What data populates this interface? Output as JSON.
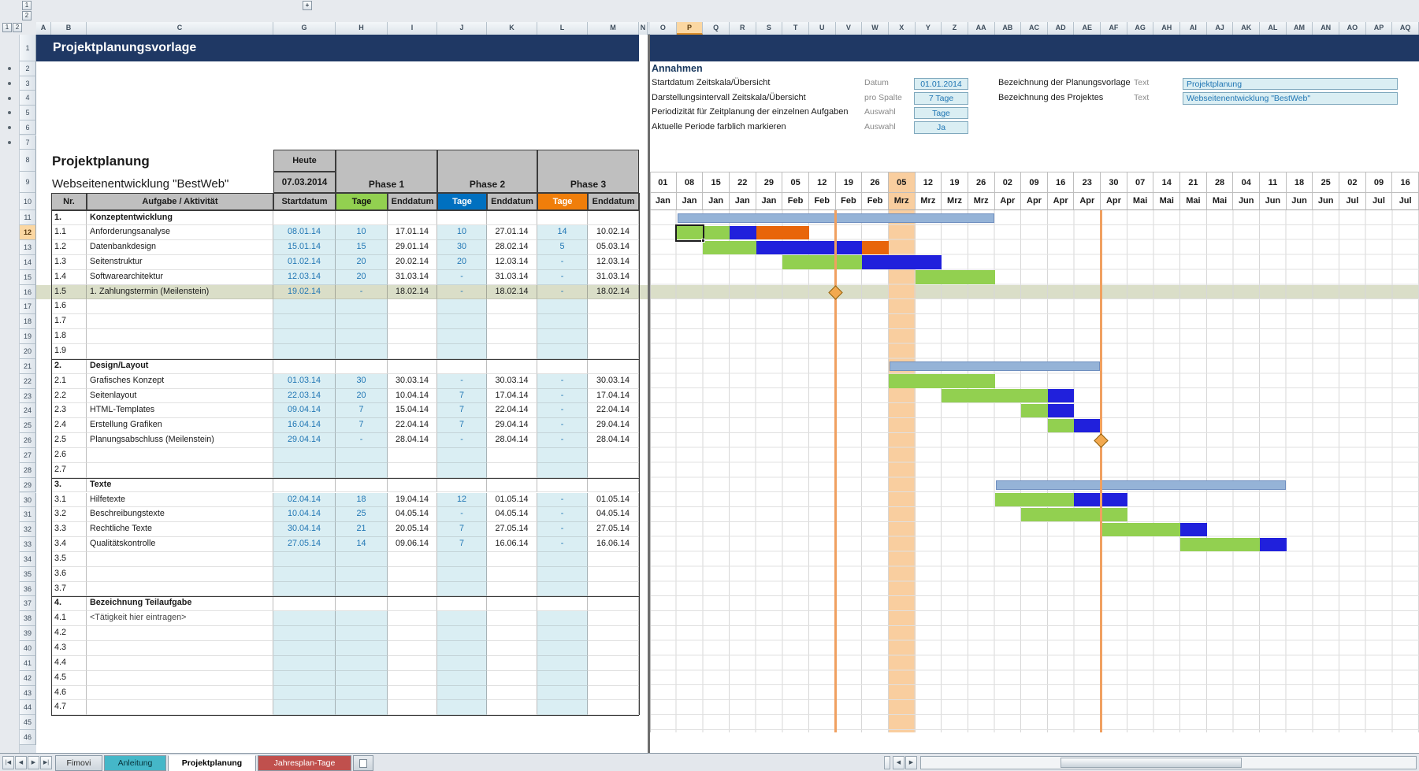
{
  "title_row": {
    "text": "Projektplanungsvorlage"
  },
  "chrome": {
    "outline_levels": [
      "1",
      "2"
    ],
    "expand_button": "+",
    "column_letters": [
      "A",
      "B",
      "C",
      "G",
      "H",
      "I",
      "J",
      "K",
      "L",
      "M",
      "N"
    ],
    "gantt_column_letters": [
      "O",
      "P",
      "Q",
      "R",
      "S",
      "T",
      "U",
      "V",
      "W",
      "X",
      "Y",
      "Z",
      "AA",
      "AB",
      "AC",
      "AD",
      "AE",
      "AF",
      "AG",
      "AH",
      "AI",
      "AJ",
      "AK",
      "AL",
      "AM",
      "AN",
      "AO",
      "AP",
      "AQ"
    ],
    "selected_column": "P",
    "selected_row": 12,
    "row_count": 46,
    "sheet_tabs": [
      {
        "label": "Fimovi",
        "active": false,
        "color": null,
        "text_color": "#2b2b2b"
      },
      {
        "label": "Anleitung",
        "active": false,
        "color": "#45B7C8",
        "text_color": "#07333B"
      },
      {
        "label": "Projektplanung",
        "active": true,
        "color": null,
        "text_color": "#000000"
      },
      {
        "label": "Jahresplan-Tage",
        "active": false,
        "color": "#C0504D",
        "text_color": "#FFFFFF"
      }
    ]
  },
  "assumptions": {
    "heading": "Annahmen",
    "left": [
      {
        "label": "Startdatum Zeitskala/Übersicht",
        "kind": "Datum",
        "value": "01.01.2014"
      },
      {
        "label": "Darstellungsintervall Zeitskala/Übersicht",
        "kind": "pro Spalte",
        "value": "7 Tage"
      },
      {
        "label": "Periodizität für Zeitplanung der einzelnen Aufgaben",
        "kind": "Auswahl",
        "value": "Tage"
      },
      {
        "label": "Aktuelle Periode farblich markieren",
        "kind": "Auswahl",
        "value": "Ja"
      }
    ],
    "right": [
      {
        "label": "Bezeichnung der Planungsvorlage",
        "kind": "Text",
        "value": "Projektplanung"
      },
      {
        "label": "Bezeichnung des Projektes",
        "kind": "Text",
        "value": "Webseitenentwicklung \"BestWeb\""
      }
    ]
  },
  "plan": {
    "title": "Projektplanung",
    "subtitle": "Webseitenentwicklung \"BestWeb\"",
    "today_label": "Heute",
    "today_value": "07.03.2014",
    "phase_labels": [
      "Phase 1",
      "Phase 2",
      "Phase 3"
    ],
    "header": {
      "nr": "Nr.",
      "task": "Aufgabe / Aktivität",
      "start": "Startdatum",
      "days": "Tage",
      "end": "Enddatum"
    }
  },
  "rows": [
    {
      "r": 11,
      "t": "sec",
      "nr": "1.",
      "name": "Konzeptentwicklung",
      "bar": [
        1,
        12
      ]
    },
    {
      "r": 12,
      "t": "task",
      "nr": "1.1",
      "name": "Anforderungsanalyse",
      "s": "08.01.14",
      "d1": "10",
      "e1": "17.01.14",
      "d2": "10",
      "e2": "27.01.14",
      "d3": "14",
      "e3": "10.02.14",
      "seg": [
        [
          1,
          2,
          1
        ],
        [
          3,
          3,
          2
        ],
        [
          4,
          5,
          3
        ]
      ],
      "sel": 1
    },
    {
      "r": 13,
      "t": "task",
      "nr": "1.2",
      "name": "Datenbankdesign",
      "s": "15.01.14",
      "d1": "15",
      "e1": "29.01.14",
      "d2": "30",
      "e2": "28.02.14",
      "d3": "5",
      "e3": "05.03.14",
      "seg": [
        [
          2,
          3,
          1
        ],
        [
          4,
          7,
          2
        ],
        [
          8,
          8,
          3
        ]
      ]
    },
    {
      "r": 14,
      "t": "task",
      "nr": "1.3",
      "name": "Seitenstruktur",
      "s": "01.02.14",
      "d1": "20",
      "e1": "20.02.14",
      "d2": "20",
      "e2": "12.03.14",
      "d3": "-",
      "e3": "12.03.14",
      "seg": [
        [
          5,
          7,
          1
        ],
        [
          8,
          10,
          2
        ]
      ]
    },
    {
      "r": 15,
      "t": "task",
      "nr": "1.4",
      "name": "Softwarearchitektur",
      "s": "12.03.14",
      "d1": "20",
      "e1": "31.03.14",
      "d2": "-",
      "e2": "31.03.14",
      "d3": "-",
      "e3": "31.03.14",
      "seg": [
        [
          10,
          12,
          1
        ]
      ]
    },
    {
      "r": 16,
      "t": "task",
      "nr": "1.5",
      "name": "1. Zahlungstermin (Meilenstein)",
      "s": "19.02.14",
      "d1": "-",
      "e1": "18.02.14",
      "d2": "-",
      "e2": "18.02.14",
      "d3": "-",
      "e3": "18.02.14",
      "hl": true
    },
    {
      "r": 17,
      "t": "empty",
      "nr": "1.6"
    },
    {
      "r": 18,
      "t": "empty",
      "nr": "1.7"
    },
    {
      "r": 19,
      "t": "empty",
      "nr": "1.8"
    },
    {
      "r": 20,
      "t": "empty",
      "nr": "1.9"
    },
    {
      "r": 21,
      "t": "sec",
      "nr": "2.",
      "name": "Design/Layout",
      "bar": [
        9,
        16
      ]
    },
    {
      "r": 22,
      "t": "task",
      "nr": "2.1",
      "name": "Grafisches Konzept",
      "s": "01.03.14",
      "d1": "30",
      "e1": "30.03.14",
      "d2": "-",
      "e2": "30.03.14",
      "d3": "-",
      "e3": "30.03.14",
      "seg": [
        [
          9,
          12,
          1
        ]
      ]
    },
    {
      "r": 23,
      "t": "task",
      "nr": "2.2",
      "name": "Seitenlayout",
      "s": "22.03.14",
      "d1": "20",
      "e1": "10.04.14",
      "d2": "7",
      "e2": "17.04.14",
      "d3": "-",
      "e3": "17.04.14",
      "seg": [
        [
          11,
          14,
          1
        ],
        [
          15,
          15,
          2
        ]
      ]
    },
    {
      "r": 24,
      "t": "task",
      "nr": "2.3",
      "name": "HTML-Templates",
      "s": "09.04.14",
      "d1": "7",
      "e1": "15.04.14",
      "d2": "7",
      "e2": "22.04.14",
      "d3": "-",
      "e3": "22.04.14",
      "seg": [
        [
          14,
          14,
          1
        ],
        [
          15,
          15,
          2
        ]
      ]
    },
    {
      "r": 25,
      "t": "task",
      "nr": "2.4",
      "name": "Erstellung Grafiken",
      "s": "16.04.14",
      "d1": "7",
      "e1": "22.04.14",
      "d2": "7",
      "e2": "29.04.14",
      "d3": "-",
      "e3": "29.04.14",
      "seg": [
        [
          15,
          15,
          1
        ],
        [
          16,
          16,
          2
        ]
      ]
    },
    {
      "r": 26,
      "t": "task",
      "nr": "2.5",
      "name": "Planungsabschluss (Meilenstein)",
      "s": "29.04.14",
      "d1": "-",
      "e1": "28.04.14",
      "d2": "-",
      "e2": "28.04.14",
      "d3": "-",
      "e3": "28.04.14"
    },
    {
      "r": 27,
      "t": "empty",
      "nr": "2.6"
    },
    {
      "r": 28,
      "t": "empty",
      "nr": "2.7"
    },
    {
      "r": 29,
      "t": "sec",
      "nr": "3.",
      "name": "Texte",
      "bar": [
        13,
        23
      ]
    },
    {
      "r": 30,
      "t": "task",
      "nr": "3.1",
      "name": "Hilfetexte",
      "s": "02.04.14",
      "d1": "18",
      "e1": "19.04.14",
      "d2": "12",
      "e2": "01.05.14",
      "d3": "-",
      "e3": "01.05.14",
      "seg": [
        [
          13,
          15,
          1
        ],
        [
          16,
          17,
          2
        ]
      ]
    },
    {
      "r": 31,
      "t": "task",
      "nr": "3.2",
      "name": "Beschreibungstexte",
      "s": "10.04.14",
      "d1": "25",
      "e1": "04.05.14",
      "d2": "-",
      "e2": "04.05.14",
      "d3": "-",
      "e3": "04.05.14",
      "seg": [
        [
          14,
          17,
          1
        ]
      ]
    },
    {
      "r": 32,
      "t": "task",
      "nr": "3.3",
      "name": "Rechtliche Texte",
      "s": "30.04.14",
      "d1": "21",
      "e1": "20.05.14",
      "d2": "7",
      "e2": "27.05.14",
      "d3": "-",
      "e3": "27.05.14",
      "seg": [
        [
          17,
          19,
          1
        ],
        [
          20,
          20,
          2
        ]
      ]
    },
    {
      "r": 33,
      "t": "task",
      "nr": "3.4",
      "name": "Qualitätskontrolle",
      "s": "27.05.14",
      "d1": "14",
      "e1": "09.06.14",
      "d2": "7",
      "e2": "16.06.14",
      "d3": "-",
      "e3": "16.06.14",
      "seg": [
        [
          20,
          22,
          1
        ],
        [
          23,
          23,
          2
        ]
      ]
    },
    {
      "r": 34,
      "t": "empty",
      "nr": "3.5"
    },
    {
      "r": 35,
      "t": "empty",
      "nr": "3.6"
    },
    {
      "r": 36,
      "t": "empty",
      "nr": "3.7"
    },
    {
      "r": 37,
      "t": "sec",
      "nr": "4.",
      "name": "Bezeichnung Teilaufgabe"
    },
    {
      "r": 38,
      "t": "empty",
      "nr": "4.1",
      "name": "<Tätigkeit hier eintragen>"
    },
    {
      "r": 39,
      "t": "empty",
      "nr": "4.2"
    },
    {
      "r": 40,
      "t": "empty",
      "nr": "4.3"
    },
    {
      "r": 41,
      "t": "empty",
      "nr": "4.4"
    },
    {
      "r": 42,
      "t": "empty",
      "nr": "4.5"
    },
    {
      "r": 43,
      "t": "empty",
      "nr": "4.6"
    },
    {
      "r": 44,
      "t": "empty",
      "nr": "4.7"
    }
  ],
  "gantt": {
    "days": [
      "01",
      "08",
      "15",
      "22",
      "29",
      "05",
      "12",
      "19",
      "26",
      "05",
      "12",
      "19",
      "26",
      "02",
      "09",
      "16",
      "23",
      "30",
      "07",
      "14",
      "21",
      "28",
      "04",
      "11",
      "18",
      "25",
      "02",
      "09",
      "16"
    ],
    "months": [
      "Jan",
      "Jan",
      "Jan",
      "Jan",
      "Jan",
      "Feb",
      "Feb",
      "Feb",
      "Feb",
      "Mrz",
      "Mrz",
      "Mrz",
      "Mrz",
      "Apr",
      "Apr",
      "Apr",
      "Apr",
      "Apr",
      "Mai",
      "Mai",
      "Mai",
      "Mai",
      "Jun",
      "Jun",
      "Jun",
      "Jun",
      "Jul",
      "Jul",
      "Jul"
    ],
    "current_period_col": 9,
    "milestones": [
      {
        "boundary_col": 7,
        "row": 16
      },
      {
        "boundary_col": 17,
        "row": 26
      }
    ]
  },
  "colors": {
    "title_band": "#1F3864",
    "header_grey": "#BFBFBF",
    "phase1_green": "#92D050",
    "phase2_header_blue": "#0070C0",
    "phase2_bar_blue": "#2020DC",
    "phase3_header_orange": "#F07E0A",
    "phase3_bar_orange": "#E8650A",
    "summary_bar_blue": "#95B3D7",
    "current_period_orange": "#F9CE9F",
    "milestone_line_orange": "#F0A060",
    "milestone_diamond_fill": "#F2A94F",
    "milestone_diamond_border": "#91610E",
    "input_cell_bg": "#DAEEF3",
    "input_cell_text": "#2076B4",
    "row_highlight": "#DADEC8",
    "selected_header_bg": "#FBD7A2",
    "navy_heading": "#17375D",
    "grid_line": "#D7D7D7"
  }
}
